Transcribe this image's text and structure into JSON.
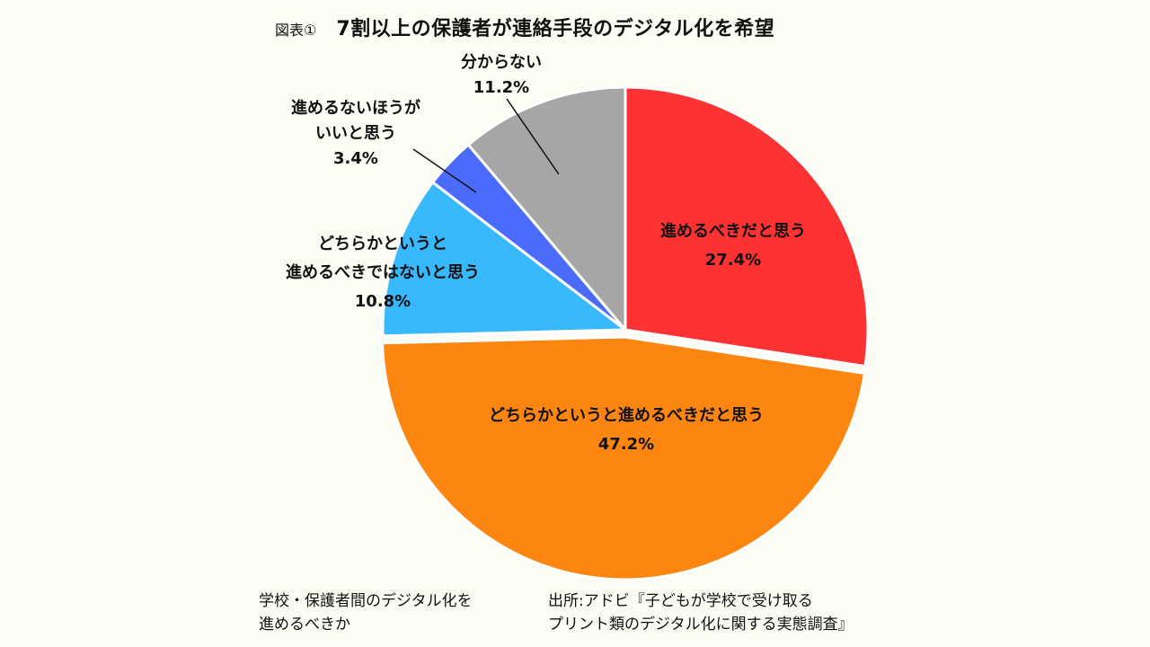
{
  "title": {
    "prefix": "図表①",
    "text": "7割以上の保護者が連絡手段のデジタル化を希望"
  },
  "chart_data": {
    "type": "pie",
    "title": "7割以上の保護者が連絡手段のデジタル化を希望",
    "slices": [
      {
        "label_lines": [
          "進めるべきだと思う"
        ],
        "value": 27.4,
        "value_text": "27.4%",
        "color": "#fd3232"
      },
      {
        "label_lines": [
          "どちらかというと進めるべきだと思う"
        ],
        "value": 47.2,
        "value_text": "47.2%",
        "color": "#fd8611"
      },
      {
        "label_lines": [
          "どちらかというと",
          "進めるべきではないと思う"
        ],
        "value": 10.8,
        "value_text": "10.8%",
        "color": "#38b8fd"
      },
      {
        "label_lines": [
          "進めるないほうが",
          "いいと思う"
        ],
        "value": 3.4,
        "value_text": "3.4%",
        "color": "#4b6bfd"
      },
      {
        "label_lines": [
          "分からない"
        ],
        "value": 11.2,
        "value_text": "11.2%",
        "color": "#a6a6a6"
      }
    ]
  },
  "footer": {
    "question_lines": [
      "学校・保護者間のデジタル化を",
      "進めるべきか"
    ],
    "source_lines": [
      "出所:アドビ『子どもが学校で受け取る",
      "プリント類のデジタル化に関する実態調査』"
    ]
  }
}
